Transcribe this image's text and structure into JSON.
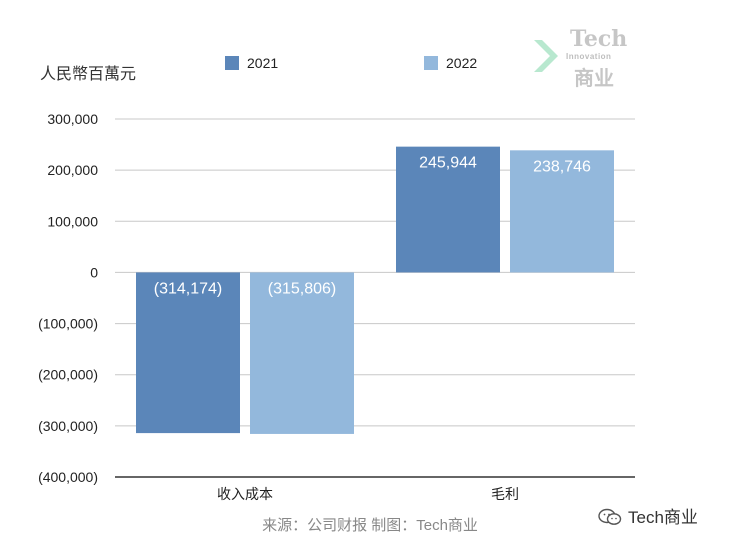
{
  "unit_label": "人民幣百萬元",
  "legend": [
    {
      "name": "2021",
      "color": "#5b86b9"
    },
    {
      "name": "2022",
      "color": "#93b8dc"
    }
  ],
  "watermark": {
    "title": "Tech",
    "subtitle": "Innovation",
    "cn": "商业"
  },
  "source": "来源：公司财报 制图：Tech商业",
  "brand": "Tech商业",
  "chart_data": {
    "type": "bar",
    "categories": [
      "收入成本",
      "毛利"
    ],
    "series": [
      {
        "name": "2021",
        "values": [
          -314174,
          245944
        ],
        "labels": [
          "(314,174)",
          "245,944"
        ],
        "color": "#5b86b9"
      },
      {
        "name": "2022",
        "values": [
          -315806,
          238746
        ],
        "labels": [
          "(315,806)",
          "238,746"
        ],
        "color": "#93b8dc"
      }
    ],
    "ylim": [
      -400000,
      300000
    ],
    "yticks": [
      300000,
      200000,
      100000,
      0,
      -100000,
      -200000,
      -300000,
      -400000
    ],
    "ytick_labels": [
      "300,000",
      "200,000",
      "100,000",
      "0",
      "(100,000)",
      "(200,000)",
      "(300,000)",
      "(400,000)"
    ],
    "ylabel": "人民幣百萬元",
    "grid": true,
    "legend_position": "top"
  }
}
